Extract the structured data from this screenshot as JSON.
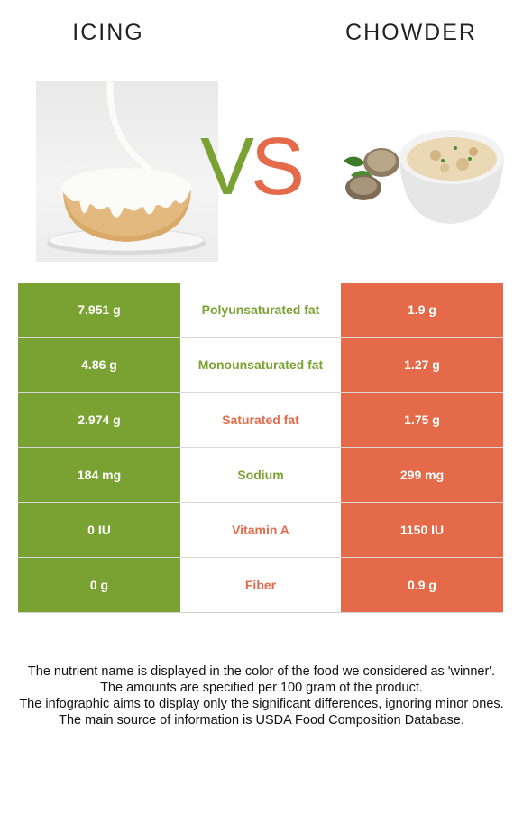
{
  "left_food": {
    "name": "ICING"
  },
  "right_food": {
    "name": "CHOWDER"
  },
  "vs": {
    "v": "V",
    "s": "S"
  },
  "colors": {
    "left": "#7aa232",
    "right": "#e46a4a"
  },
  "rows": [
    {
      "left": "7.951 g",
      "nutrient": "Polyunsaturated fat",
      "right": "1.9 g",
      "winner": "left"
    },
    {
      "left": "4.86 g",
      "nutrient": "Monounsaturated fat",
      "right": "1.27 g",
      "winner": "left"
    },
    {
      "left": "2.974 g",
      "nutrient": "Saturated fat",
      "right": "1.75 g",
      "winner": "right"
    },
    {
      "left": "184 mg",
      "nutrient": "Sodium",
      "right": "299 mg",
      "winner": "left"
    },
    {
      "left": "0 IU",
      "nutrient": "Vitamin A",
      "right": "1150 IU",
      "winner": "right"
    },
    {
      "left": "0 g",
      "nutrient": "Fiber",
      "right": "0.9 g",
      "winner": "right"
    }
  ],
  "footer": {
    "line1": "The nutrient name is displayed in the color of the food we considered as 'winner'.",
    "line2": "The amounts are specified per 100 gram of the product.",
    "line3": "The infographic aims to display only the significant differences, ignoring minor ones.",
    "line4": "The main source of information is USDA Food Composition Database."
  }
}
